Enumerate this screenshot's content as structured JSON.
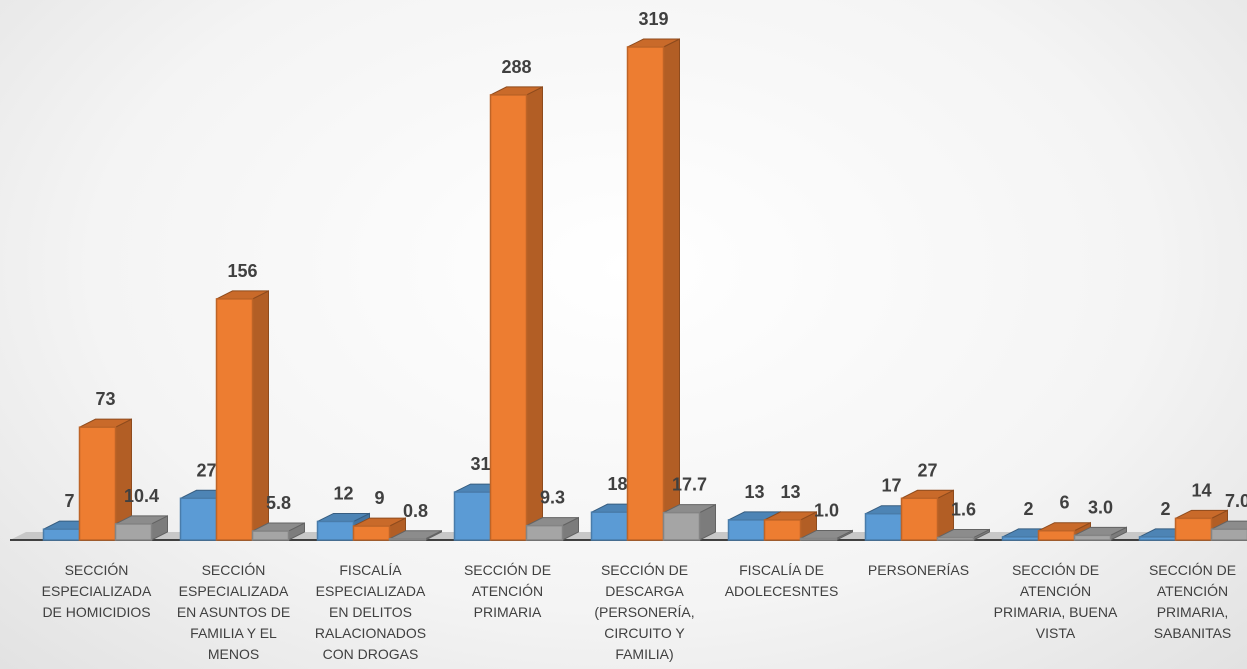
{
  "chart_data": {
    "type": "bar",
    "categories": [
      "SECCIÓN ESPECIALIZADA DE HOMICIDIOS",
      "SECCIÓN ESPECIALIZADA EN ASUNTOS DE FAMILIA Y EL MENOS",
      "FISCALÍA ESPECIALIZADA EN DELITOS RALACIONADOS CON DROGAS",
      "SECCIÓN DE ATENCIÓN PRIMARIA",
      "SECCIÓN DE DESCARGA (PERSONERÍA, CIRCUITO Y FAMILIA)",
      "FISCALÍA DE ADOLECESNTES",
      "PERSONERÍAS",
      "SECCIÓN DE ATENCIÓN PRIMARIA, BUENA VISTA",
      "SECCIÓN DE ATENCIÓN PRIMARIA, SABANITAS"
    ],
    "series": [
      {
        "color": "#5b9bd5",
        "values": [
          7,
          27,
          12,
          31,
          18,
          13,
          17,
          2,
          2
        ]
      },
      {
        "color": "#ed7d31",
        "values": [
          73,
          156,
          9,
          288,
          319,
          13,
          27,
          6,
          14
        ]
      },
      {
        "color": "#a5a5a5",
        "values": [
          10.4,
          5.8,
          0.8,
          9.3,
          17.7,
          1.0,
          1.6,
          3.0,
          7.0
        ],
        "value_labels": [
          "10.4",
          "5.8",
          "0.8",
          "9.3",
          "17.7",
          "1.0",
          "1.6",
          "3.0",
          "7.0"
        ]
      }
    ]
  }
}
